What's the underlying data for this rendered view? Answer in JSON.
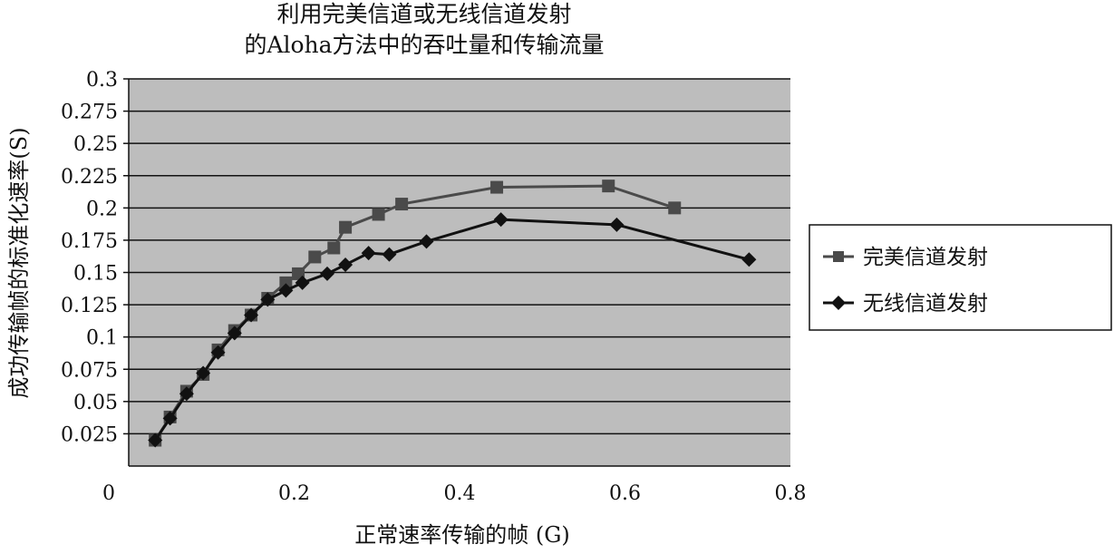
{
  "chart_data": {
    "type": "line",
    "title_lines": [
      "利用完美信道或无线信道发射",
      "的Aloha方法中的吞吐量和传输流量"
    ],
    "xlabel": "正常速率传输的帧 (G)",
    "ylabel": "成功传输帧的标准化速率(S)",
    "xlim": [
      0,
      0.8
    ],
    "ylim": [
      0,
      0.3
    ],
    "x_ticks": [
      "0",
      "0.2",
      "0.4",
      "0.6",
      "0.8"
    ],
    "x_tick_values": [
      0,
      0.2,
      0.4,
      0.6,
      0.8
    ],
    "y_ticks": [
      "0.025",
      "0.05",
      "0.075",
      "0.1",
      "0.125",
      "0.15",
      "0.175",
      "0.2",
      "0.225",
      "0.25",
      "0.275",
      "0.3"
    ],
    "y_tick_values": [
      0.025,
      0.05,
      0.075,
      0.1,
      0.125,
      0.15,
      0.175,
      0.2,
      0.225,
      0.25,
      0.275,
      0.3
    ],
    "grid": "horizontal",
    "legend_position": "right",
    "series": [
      {
        "name": "完美信道发射",
        "marker": "square",
        "color": "#4a4a4a",
        "x": [
          0.032,
          0.05,
          0.07,
          0.09,
          0.108,
          0.128,
          0.148,
          0.168,
          0.19,
          0.205,
          0.225,
          0.248,
          0.262,
          0.302,
          0.33,
          0.445,
          0.58,
          0.66
        ],
        "y": [
          0.02,
          0.038,
          0.058,
          0.071,
          0.09,
          0.105,
          0.117,
          0.13,
          0.142,
          0.149,
          0.162,
          0.169,
          0.185,
          0.195,
          0.203,
          0.216,
          0.217,
          0.2
        ]
      },
      {
        "name": "无线信道发射",
        "marker": "diamond",
        "color": "#111111",
        "x": [
          0.032,
          0.05,
          0.07,
          0.09,
          0.108,
          0.128,
          0.148,
          0.168,
          0.19,
          0.21,
          0.24,
          0.262,
          0.29,
          0.315,
          0.36,
          0.45,
          0.59,
          0.75
        ],
        "y": [
          0.02,
          0.037,
          0.056,
          0.072,
          0.088,
          0.103,
          0.117,
          0.129,
          0.136,
          0.142,
          0.149,
          0.156,
          0.165,
          0.164,
          0.174,
          0.191,
          0.187,
          0.16
        ]
      }
    ]
  }
}
